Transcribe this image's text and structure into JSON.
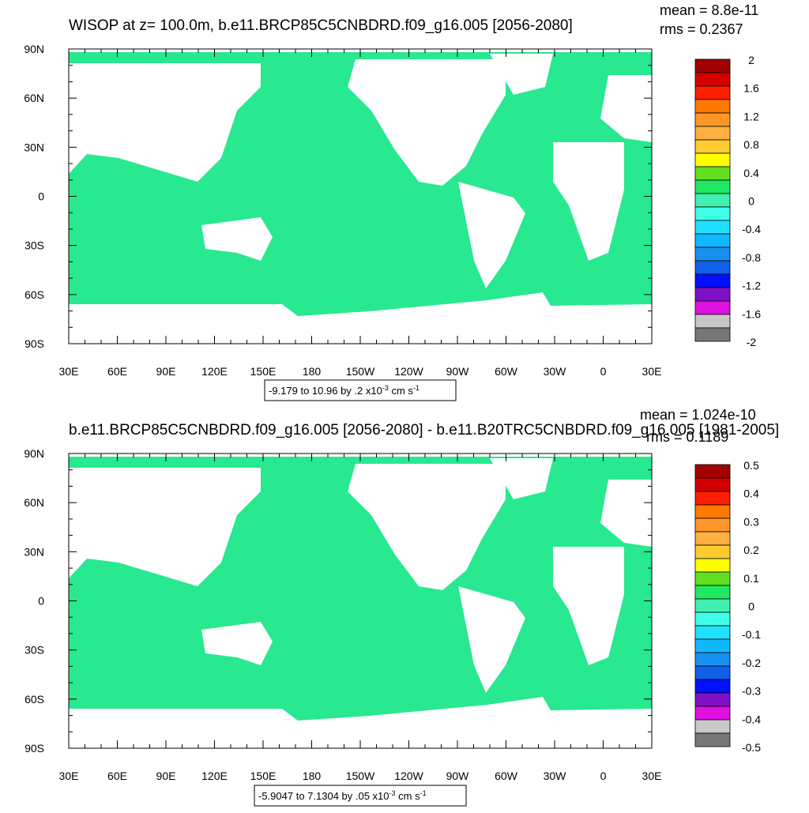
{
  "panels": [
    {
      "title": "WISOP at z= 100.0m, b.e11.BRCP85C5CNBDRD.f09_g16.005 [2056-2080]",
      "mean": "mean = 8.8e-11",
      "rms": "rms = 0.2367",
      "lat_labels": [
        "90N",
        "60N",
        "30N",
        "0",
        "30S",
        "60S",
        "90S"
      ],
      "lon_labels": [
        "30E",
        "60E",
        "90E",
        "120E",
        "150E",
        "180",
        "150W",
        "120W",
        "90W",
        "60W",
        "30W",
        "0",
        "30E"
      ],
      "info": "-9.179 to 10.96 by .2 x10",
      "info_exp": "-3",
      "info_unit": " cm s",
      "info_unit_exp": "-1",
      "colorbar_labels": [
        "2",
        "1.6",
        "1.2",
        "0.8",
        "0.4",
        "0",
        "-0.4",
        "-0.8",
        "-1.2",
        "-1.6",
        "-2"
      ]
    },
    {
      "title": "b.e11.BRCP85C5CNBDRD.f09_g16.005 [2056-2080] - b.e11.B20TRC5CNBDRD.f09_g16.005 [1981-2005]",
      "mean": "mean = 1.024e-10",
      "rms": "rms = 0.1189",
      "lat_labels": [
        "90N",
        "60N",
        "30N",
        "0",
        "30S",
        "60S",
        "90S"
      ],
      "lon_labels": [
        "30E",
        "60E",
        "90E",
        "120E",
        "150E",
        "180",
        "150W",
        "120W",
        "90W",
        "60W",
        "30W",
        "0",
        "30E"
      ],
      "info": "-5.9047 to 7.1304 by .05 x10",
      "info_exp": "-3",
      "info_unit": " cm s",
      "info_unit_exp": "-1",
      "colorbar_labels": [
        "0.5",
        "0.4",
        "0.3",
        "0.2",
        "0.1",
        "0",
        "-0.1",
        "-0.2",
        "-0.3",
        "-0.4",
        "-0.5"
      ]
    }
  ],
  "colorbar_colors": [
    "#a00000",
    "#d40000",
    "#ff1e00",
    "#ff7800",
    "#ff9628",
    "#ffb040",
    "#ffcc30",
    "#ffff00",
    "#60e020",
    "#20e860",
    "#40f0b0",
    "#40ffe8",
    "#20e0ff",
    "#10b8ff",
    "#1890f0",
    "#1060e8",
    "#0010ff",
    "#8010c8",
    "#e010e0",
    "#c8c8c8"
  ],
  "ocean_color": "#28e890"
}
